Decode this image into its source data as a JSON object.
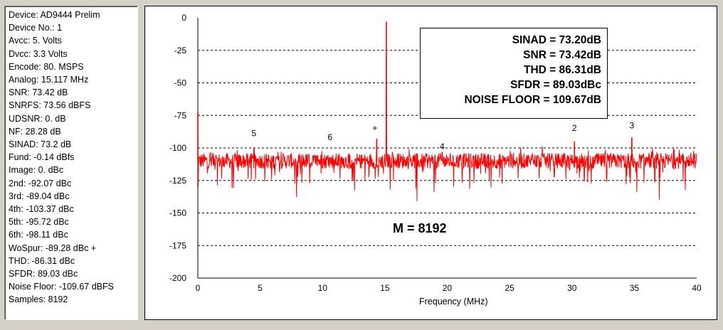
{
  "info_panel": {
    "lines": [
      "Device: AD9444 Prelim",
      "Device No.: 1",
      "Avcc: 5. Volts",
      "Dvcc: 3.3 Volts",
      "Encode: 80. MSPS",
      "Analog: 15.117 MHz",
      "SNR: 73.42 dB",
      "SNRFS: 73.56 dBFS",
      "UDSNR: 0. dB",
      "NF: 28.28 dB",
      "SINAD: 73.2 dB",
      "Fund: -0.14 dBfs",
      "Image: 0. dBc",
      "2nd: -92.07 dBc",
      "3rd: -89.04 dBc",
      "4th: -103.37 dBc",
      "5th: -95.72 dBc",
      "6th: -98.11 dBc",
      "WoSpur: -89.28 dBc +",
      "THD: -86.31 dBc",
      "SFDR: 89.03 dBc",
      "Noise Floor: -109.67 dBFS",
      "Samples: 8192"
    ]
  },
  "stats_box": {
    "lines": [
      "SINAD = 73.20dB",
      "SNR = 73.42dB",
      "THD = 86.31dB",
      "SFDR = 89.03dBc",
      "NOISE FLOOR = 109.67dB"
    ]
  },
  "m_label": "M = 8192",
  "colors": {
    "trace": "#ff0000",
    "grid": "#000000",
    "background": "#ffffff"
  },
  "chart_data": {
    "type": "line",
    "title": "",
    "xlabel": "Frequency (MHz)",
    "ylabel": "",
    "xlim": [
      0,
      40
    ],
    "ylim": [
      -200,
      0
    ],
    "x_ticks": [
      0,
      5,
      10,
      15,
      20,
      25,
      30,
      35,
      40
    ],
    "y_ticks": [
      0,
      -25,
      -50,
      -75,
      -100,
      -125,
      -150,
      -175,
      -200
    ],
    "grid": "horizontal dashed",
    "noise_floor_level": -110,
    "peaks": [
      {
        "x": 0.0,
        "y": -72
      },
      {
        "x": 4.5,
        "y": -100
      },
      {
        "x": 14.35,
        "y": -93
      },
      {
        "x": 15.117,
        "y": -3
      },
      {
        "x": 19.6,
        "y": -103
      },
      {
        "x": 30.2,
        "y": -95
      },
      {
        "x": 34.8,
        "y": -92
      }
    ],
    "annotations": [
      {
        "text": "5",
        "x": 4.5,
        "y": -91
      },
      {
        "text": "6",
        "x": 10.6,
        "y": -94
      },
      {
        "text": "+",
        "x": 14.2,
        "y": -87
      },
      {
        "text": "4",
        "x": 19.6,
        "y": -101
      },
      {
        "text": "2",
        "x": 30.2,
        "y": -87
      },
      {
        "text": "3",
        "x": 34.8,
        "y": -85
      }
    ]
  }
}
